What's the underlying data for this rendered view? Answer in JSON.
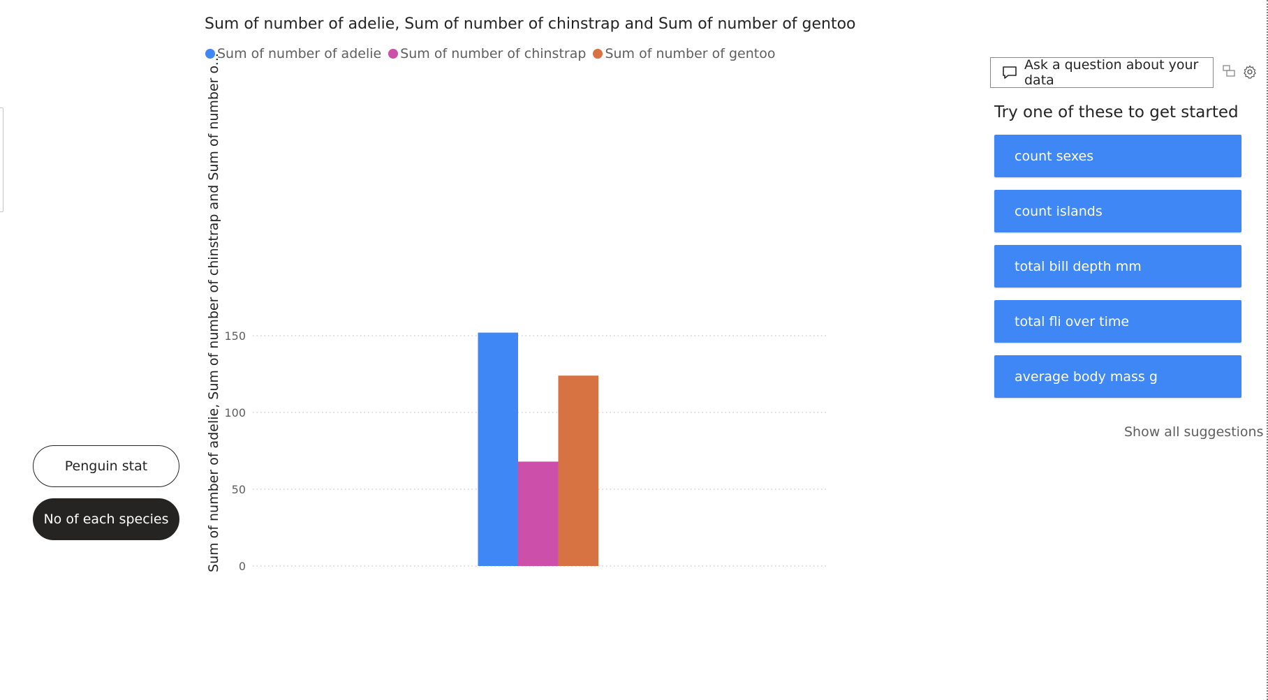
{
  "nav": {
    "buttons": [
      "Penguin stat",
      "No of each species"
    ]
  },
  "chart_data": {
    "type": "bar",
    "title": "Sum of number of adelie, Sum of number of chinstrap and Sum of number of gentoo",
    "ylabel": "Sum of number of adelie, Sum of number of chinstrap and Sum of number o...",
    "xlabel": "",
    "categories": [
      ""
    ],
    "series": [
      {
        "name": "Sum of number of adelie",
        "values": [
          152
        ],
        "color": "#3e87f5"
      },
      {
        "name": "Sum of number of chinstrap",
        "values": [
          68
        ],
        "color": "#cc4faa"
      },
      {
        "name": "Sum of number of gentoo",
        "values": [
          124
        ],
        "color": "#d77242"
      }
    ],
    "ylim": [
      0,
      160
    ],
    "yticks": [
      0,
      50,
      100,
      150
    ],
    "grid": true,
    "legend_position": "top-left"
  },
  "qa": {
    "input_placeholder": "Ask a question about your data",
    "heading": "Try one of these to get started",
    "suggestions": [
      "count sexes",
      "count islands",
      "total bill depth mm",
      "total fli over time",
      "average body mass g"
    ],
    "show_all": "Show all suggestions"
  },
  "colors": {
    "accent": "#3e87f5",
    "dark": "#252423",
    "adelie": "#3e87f5",
    "chinstrap": "#cc4faa",
    "gentoo": "#d77242"
  },
  "icons": [
    "chat-bubble-icon",
    "layout-switch-icon",
    "gear-icon"
  ]
}
